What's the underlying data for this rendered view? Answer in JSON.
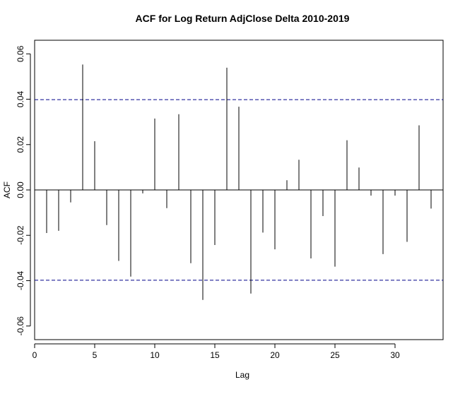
{
  "chart_data": {
    "type": "bar",
    "title": "ACF for Log Return AdjClose Delta 2010-2019",
    "xlabel": "Lag",
    "ylabel": "ACF",
    "xlim": [
      0,
      34
    ],
    "ylim": [
      -0.066,
      0.066
    ],
    "x_ticks": [
      0,
      5,
      10,
      15,
      20,
      25,
      30
    ],
    "y_ticks": [
      -0.06,
      -0.04,
      -0.02,
      0.0,
      0.02,
      0.04,
      0.06
    ],
    "y_tick_labels": [
      "-0.06",
      "-0.04",
      "-0.02",
      "0.00",
      "0.02",
      "0.04",
      "0.06"
    ],
    "lags": [
      1,
      2,
      3,
      4,
      5,
      6,
      7,
      8,
      9,
      10,
      11,
      12,
      13,
      14,
      15,
      16,
      17,
      18,
      19,
      20,
      21,
      22,
      23,
      24,
      25,
      26,
      27,
      28,
      29,
      30,
      31,
      32,
      33
    ],
    "values": [
      -0.019,
      -0.018,
      -0.0055,
      0.0553,
      0.0215,
      -0.0155,
      -0.0313,
      -0.0382,
      -0.0015,
      0.0315,
      -0.008,
      0.0334,
      -0.0323,
      -0.0485,
      -0.0243,
      0.0539,
      0.0367,
      -0.0457,
      -0.0188,
      -0.0262,
      0.0043,
      0.0133,
      -0.0302,
      -0.0115,
      -0.0338,
      0.0219,
      0.0099,
      -0.0025,
      -0.0283,
      -0.0025,
      -0.0229,
      0.0285,
      -0.0082
    ],
    "confidence_bounds": [
      0.0398,
      -0.0398
    ],
    "colors": {
      "bar": "#000000",
      "bound": "#00008b",
      "axis": "#000000"
    }
  }
}
